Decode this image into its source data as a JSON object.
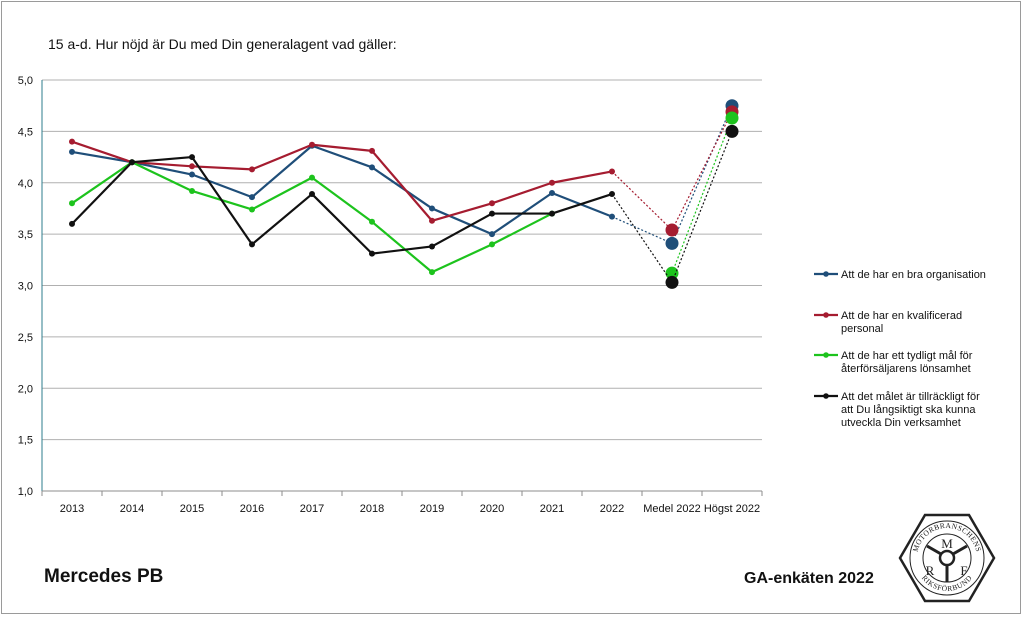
{
  "title": "15 a-d. Hur nöjd är Du med Din generalagent vad gäller:",
  "footer": {
    "brand": "Mercedes PB",
    "survey": "GA-enkäten 2022"
  },
  "logo": {
    "letters": [
      "M",
      "R",
      "F"
    ],
    "ring_top": "MOTORBRANSCHENS",
    "ring_bottom": "RIKSFÖRBUND"
  },
  "chart_data": {
    "type": "line",
    "title": "15 a-d. Hur nöjd är Du med Din generalagent vad gäller:",
    "categories": [
      "2013",
      "2014",
      "2015",
      "2016",
      "2017",
      "2018",
      "2019",
      "2020",
      "2021",
      "2022",
      "Medel 2022",
      "Högst 2022"
    ],
    "ylim": [
      1.0,
      5.0
    ],
    "yticks": [
      "1,0",
      "1,5",
      "2,0",
      "2,5",
      "3,0",
      "3,5",
      "4,0",
      "4,5",
      "5,0"
    ],
    "ytick_values": [
      1.0,
      1.5,
      2.0,
      2.5,
      3.0,
      3.5,
      4.0,
      4.5,
      5.0
    ],
    "grid": true,
    "legend_position": "right",
    "series": [
      {
        "name": "Att de har en bra organisation",
        "color": "#1f4e79",
        "values": [
          4.3,
          4.2,
          4.08,
          3.86,
          4.36,
          4.15,
          3.75,
          3.5,
          3.9,
          3.67,
          3.41,
          4.75
        ]
      },
      {
        "name": "Att de har en kvalificerad personal",
        "color": "#a51c30",
        "values": [
          4.4,
          4.2,
          4.16,
          4.13,
          4.37,
          4.31,
          3.63,
          3.8,
          4.0,
          4.11,
          3.54,
          4.69
        ]
      },
      {
        "name": "Att de har ett tydligt mål för återförsäljarens lönsamhet",
        "color": "#1dc31d",
        "values": [
          3.8,
          4.2,
          3.92,
          3.74,
          4.05,
          3.62,
          3.13,
          3.4,
          3.7,
          null,
          3.12,
          4.63
        ]
      },
      {
        "name": "Att det målet är tillräckligt för att Du långsiktigt ska kunna utveckla Din verksamhet",
        "color": "#111111",
        "values": [
          3.6,
          4.2,
          4.25,
          3.4,
          3.89,
          3.31,
          3.38,
          3.7,
          3.7,
          3.89,
          3.03,
          4.5
        ]
      }
    ]
  }
}
